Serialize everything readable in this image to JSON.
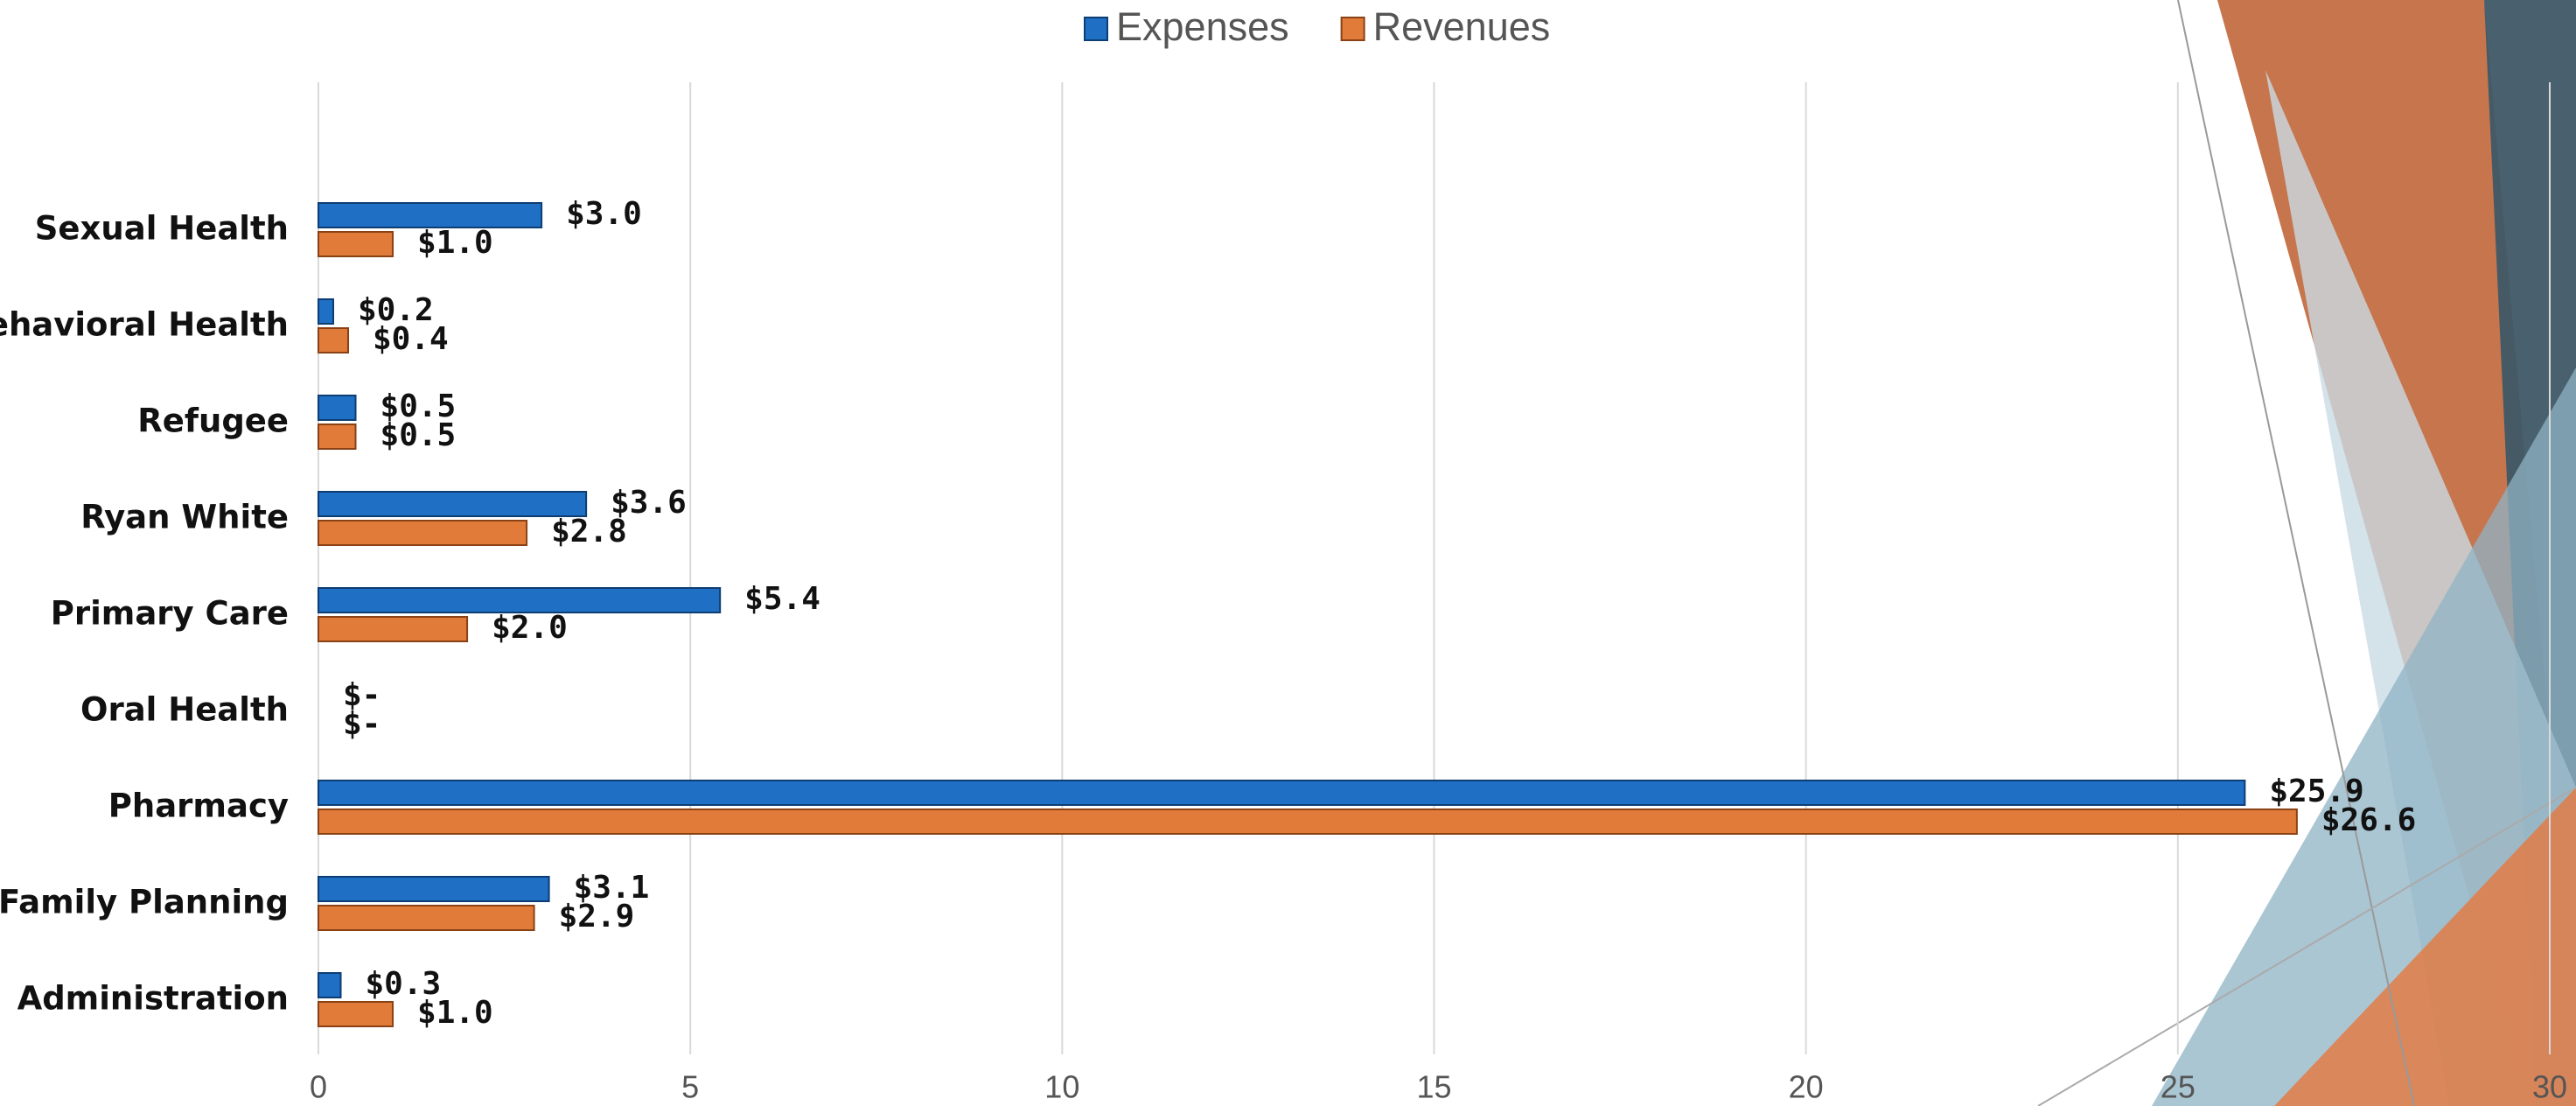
{
  "chart_data": {
    "type": "barh",
    "categories": [
      "Sexual Health",
      "Behavioral Health",
      "Refugee",
      "Ryan White",
      "Primary Care",
      "Oral Health",
      "Pharmacy",
      "Family Planning",
      "Administration"
    ],
    "series": [
      {
        "name": "Expenses",
        "color": "#1f6fc5",
        "values": [
          3.0,
          0.2,
          0.5,
          3.6,
          5.4,
          0,
          25.9,
          3.1,
          0.3
        ],
        "value_labels": [
          "$3.0",
          "$0.2",
          "$0.5",
          "$3.6",
          "$5.4",
          "$-",
          "$25.9",
          "$3.1",
          "$0.3"
        ]
      },
      {
        "name": "Revenues",
        "color": "#e07b39",
        "values": [
          1.0,
          0.4,
          0.5,
          2.8,
          2.0,
          0,
          26.6,
          2.9,
          1.0
        ],
        "value_labels": [
          "$1.0",
          "$0.4",
          "$0.5",
          "$2.8",
          "$2.0",
          "$-",
          "$26.6",
          "$2.9",
          "$1.0"
        ]
      }
    ],
    "xlim": [
      0,
      30
    ],
    "xticks": [
      0,
      5,
      10,
      15,
      20,
      25,
      30
    ],
    "grid": true,
    "legend": "top"
  }
}
